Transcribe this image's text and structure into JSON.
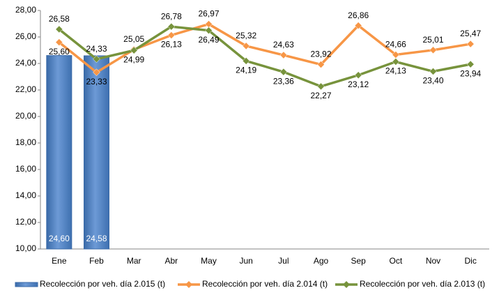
{
  "chart_data": {
    "type": "bar",
    "categories": [
      "Ene",
      "Feb",
      "Mar",
      "Abr",
      "May",
      "Jun",
      "Jul",
      "Ago",
      "Sep",
      "Oct",
      "Nov",
      "Dic"
    ],
    "series": [
      {
        "name": "Recolección por veh. día 2.015 (t)",
        "type": "bar",
        "color": "#4f81bd",
        "values": [
          24.6,
          24.58,
          null,
          null,
          null,
          null,
          null,
          null,
          null,
          null,
          null,
          null
        ],
        "value_labels": [
          "24,60",
          "24,58",
          null,
          null,
          null,
          null,
          null,
          null,
          null,
          null,
          null,
          null
        ]
      },
      {
        "name": "Recolección por veh. día 2.014 (t)",
        "type": "line",
        "color": "#f79646",
        "values": [
          25.6,
          23.33,
          25.05,
          26.13,
          26.97,
          25.32,
          24.63,
          23.92,
          26.86,
          24.66,
          25.01,
          25.47
        ],
        "value_labels": [
          "25,60",
          "23,33",
          "25,05",
          "26,13",
          "26,97",
          "25,32",
          "24,63",
          "23,92",
          "26,86",
          "24,66",
          "25,01",
          "25,47"
        ]
      },
      {
        "name": "Recolección por veh. día 2.013 (t)",
        "type": "line",
        "color": "#77933c",
        "values": [
          26.58,
          24.33,
          24.99,
          26.78,
          26.49,
          24.19,
          23.36,
          22.27,
          23.12,
          24.13,
          23.4,
          23.94
        ],
        "value_labels": [
          "26,58",
          "24,33",
          "24,99",
          "26,78",
          "26,49",
          "24,19",
          "23,36",
          "22,27",
          "23,12",
          "24,13",
          "23,40",
          "23,94"
        ]
      }
    ],
    "ylim": [
      10,
      28
    ],
    "yticks": [
      {
        "value": 10,
        "label": "10,00"
      },
      {
        "value": 12,
        "label": "12,00"
      },
      {
        "value": 14,
        "label": "14,00"
      },
      {
        "value": 16,
        "label": "16,00"
      },
      {
        "value": 18,
        "label": "18,00"
      },
      {
        "value": 20,
        "label": "20,00"
      },
      {
        "value": 22,
        "label": "22,00"
      },
      {
        "value": 24,
        "label": "24,00"
      },
      {
        "value": 26,
        "label": "26,00"
      },
      {
        "value": 28,
        "label": "28,00"
      }
    ],
    "grid": false,
    "legend": "bottom"
  }
}
